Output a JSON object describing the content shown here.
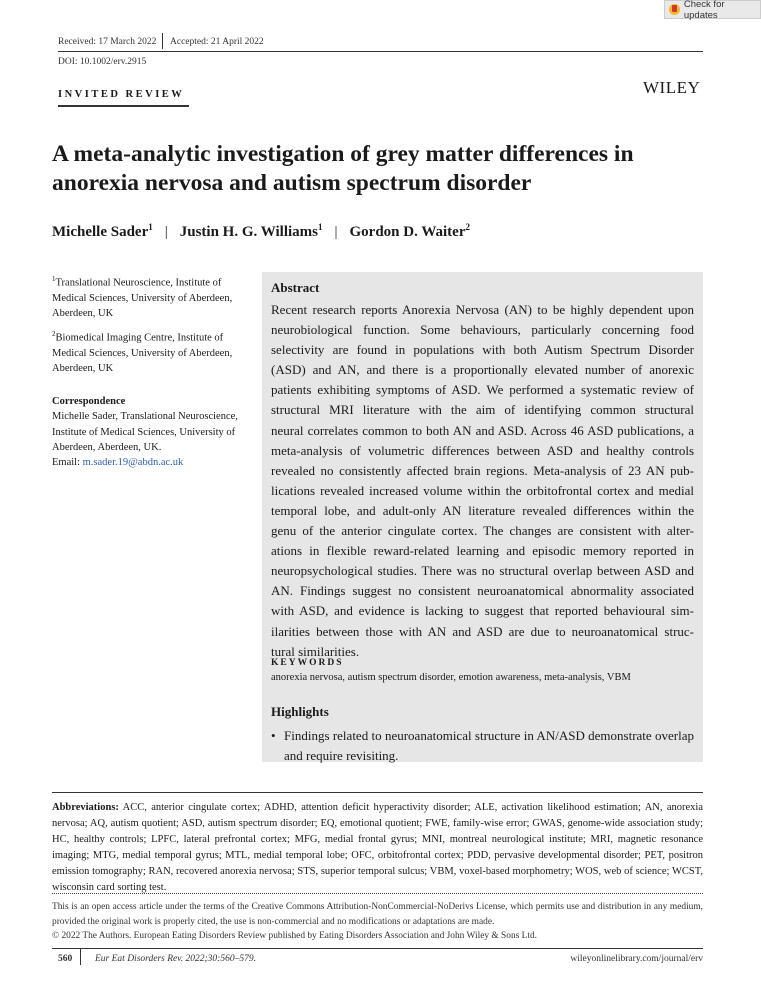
{
  "check_updates": {
    "label": "Check for updates",
    "icon": "crossmark-icon"
  },
  "header": {
    "received": "Received: 17 March 2022",
    "accepted": "Accepted: 21 April 2022",
    "doi": "DOI: 10.1002/erv.2915",
    "section": "INVITED REVIEW",
    "publisher": "WILEY"
  },
  "title_lines": [
    "A meta-analytic investigation of grey matter differences in",
    "anorexia nervosa and autism spectrum disorder"
  ],
  "authors": [
    {
      "name": "Michelle Sader",
      "sup": "1"
    },
    {
      "name": "Justin H. G. Williams",
      "sup": "1"
    },
    {
      "name": "Gordon D. Waiter",
      "sup": "2"
    }
  ],
  "author_separator": "|",
  "affiliations": [
    {
      "sup": "1",
      "text": "Translational Neuroscience, Institute of Medical Sciences, University of Aberdeen, Aberdeen, UK"
    },
    {
      "sup": "2",
      "text": "Biomedical Imaging Centre, Institute of Medical Sciences, University of Aberdeen, Aberdeen, UK"
    }
  ],
  "correspondence": {
    "heading": "Correspondence",
    "text": "Michelle Sader, Translational Neuroscience, Institute of Medical Sciences, University of Aberdeen, Aberdeen, UK.",
    "email_label": "Email: ",
    "email": "m.sader.19@abdn.ac.uk"
  },
  "abstract": {
    "heading": "Abstract",
    "lines": [
      "Recent research reports Anorexia Nervosa (AN) to be highly dependent upon",
      "neurobiological function. Some behaviours, particularly concerning food",
      "selectivity are found in populations with both Autism Spectrum Disorder",
      "(ASD) and AN, and there is a proportionally elevated number of anorexic",
      "patients exhibiting symptoms of ASD. We performed a systematic review of",
      "structural MRI literature with the aim of identifying common structural",
      "neural correlates common to both AN and ASD. Across 46 ASD publications, a",
      "meta-analysis of volumetric differences between ASD and healthy controls",
      "revealed no consistently affected brain regions. Meta-analysis of 23 AN pub-",
      "lications revealed increased volume within the orbitofrontal cortex and medial",
      "temporal lobe, and adult-only AN literature revealed differences within the",
      "genu of the anterior cingulate cortex. The changes are consistent with alter-",
      "ations in flexible reward-related learning and episodic memory reported in",
      "neuropsychological studies. There was no structural overlap between ASD and",
      "AN. Findings suggest no consistent neuroanatomical abnormality associated",
      "with ASD, and evidence is lacking to suggest that reported behavioural sim-",
      "ilarities between those with AN and ASD are due to neuroanatomical struc-",
      "tural similarities."
    ]
  },
  "keywords": {
    "heading": "KEYWORDS",
    "text": "anorexia nervosa, autism spectrum disorder, emotion awareness, meta-analysis, VBM"
  },
  "highlights": {
    "heading": "Highlights",
    "items": [
      "Findings related to neuroanatomical structure in AN/ASD demonstrate overlap and require revisiting."
    ]
  },
  "abbreviations": {
    "label": "Abbreviations:",
    "text": " ACC, anterior cingulate cortex; ADHD, attention deficit hyperactivity disorder; ALE, activation likelihood estimation; AN, anorexia nervosa; AQ, autism quotient; ASD, autism spectrum disorder; EQ, emotional quotient; FWE, family-wise error; GWAS, genome-wide association study; HC, healthy controls; LPFC, lateral prefrontal cortex; MFG, medial frontal gyrus; MNI, montreal neurological institute; MRI, magnetic resonance imaging; MTG, medial temporal gyrus; MTL, medial temporal lobe; OFC, orbitofrontal cortex; PDD, pervasive developmental disorder; PET, positron emission tomography; RAN, recovered anorexia nervosa; STS, superior temporal sulcus; VBM, voxel-based morphometry; WOS, web of science; WCST, wisconsin card sorting test."
  },
  "license": "This is an open access article under the terms of the Creative Commons Attribution-NonCommercial-NoDerivs License, which permits use and distribution in any medium, provided the original work is properly cited, the use is non-commercial and no modifications or adaptations are made.",
  "copyright": "© 2022 The Authors. European Eating Disorders Review published by Eating Disorders Association and John Wiley & Sons Ltd.",
  "footer": {
    "page": "560",
    "citation": "Eur Eat Disorders Rev. 2022;30:560–579.",
    "url": "wileyonlinelibrary.com/journal/erv"
  }
}
